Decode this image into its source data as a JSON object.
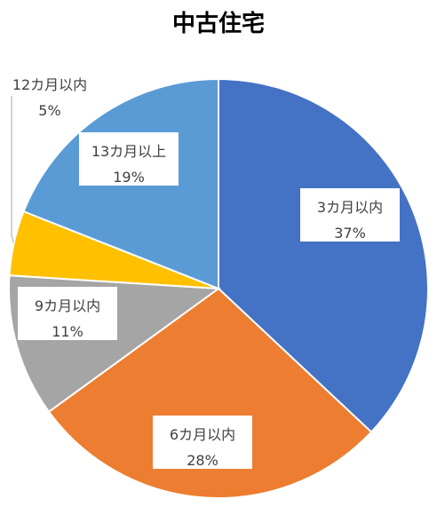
{
  "chart_data": {
    "type": "pie",
    "title": "中古住宅",
    "slices": [
      {
        "label": "3カ月以内",
        "value": 37,
        "value_label": "37%",
        "color": "#4472C4"
      },
      {
        "label": "6カ月以内",
        "value": 28,
        "value_label": "28%",
        "color": "#ED7D31"
      },
      {
        "label": "9カ月以内",
        "value": 11,
        "value_label": "11%",
        "color": "#A5A5A5"
      },
      {
        "label": "12カ月以内",
        "value": 5,
        "value_label": "5%",
        "color": "#FFC000"
      },
      {
        "label": "13カ月以上",
        "value": 19,
        "value_label": "19%",
        "color": "#5B9BD5"
      }
    ],
    "legend": "none"
  }
}
